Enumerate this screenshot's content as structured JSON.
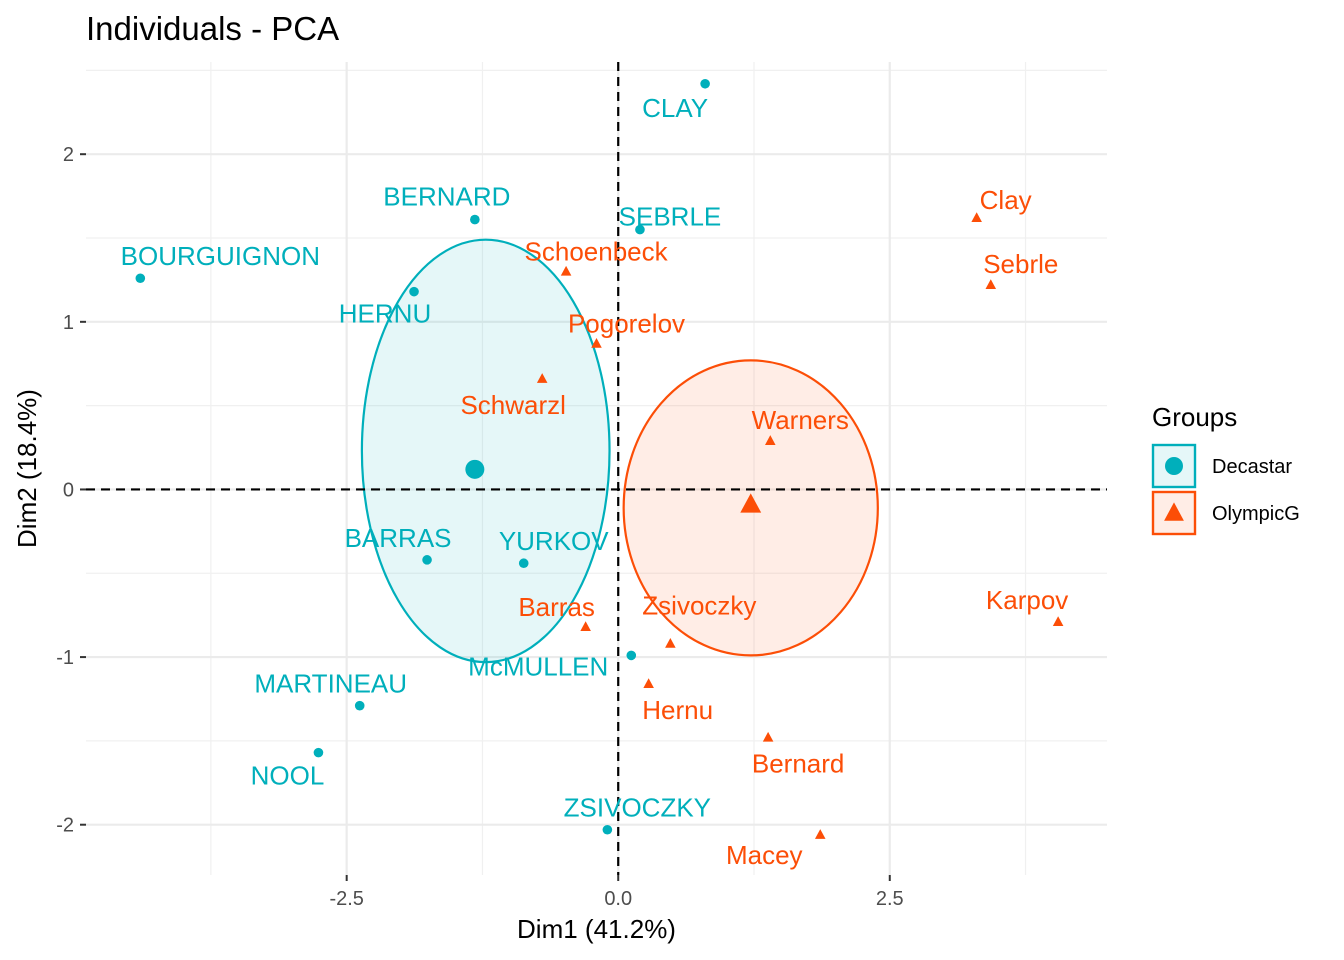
{
  "chart_data": {
    "type": "scatter",
    "title": "Individuals - PCA",
    "xlabel": "Dim1 (41.2%)",
    "ylabel": "Dim2 (18.4%)",
    "xlim": [
      -4.9,
      4.5
    ],
    "ylim": [
      -2.3,
      2.55
    ],
    "x_ticks": [
      -2.5,
      0.0,
      2.5
    ],
    "x_tick_labels": [
      "-2.5",
      "0.0",
      "2.5"
    ],
    "y_ticks": [
      -2,
      -1,
      0,
      1,
      2
    ],
    "y_tick_labels": [
      "-2",
      "-1",
      "0",
      "1",
      "2"
    ],
    "grid": true,
    "reference_lines": {
      "x": 0,
      "y": 0
    },
    "legend": {
      "title": "Groups",
      "position": "right",
      "items": [
        {
          "label": "Decastar",
          "color": "#00AFBB",
          "shape": "circle"
        },
        {
          "label": "OlympicG",
          "color": "#FC4E07",
          "shape": "triangle"
        }
      ]
    },
    "series": [
      {
        "name": "Decastar",
        "color": "#00AFBB",
        "shape": "circle",
        "points": [
          {
            "label": "CLAY",
            "x": 0.8,
            "y": 2.42
          },
          {
            "label": "BERNARD",
            "x": -1.32,
            "y": 1.61
          },
          {
            "label": "SEBRLE",
            "x": 0.2,
            "y": 1.55
          },
          {
            "label": "BOURGUIGNON",
            "x": -4.4,
            "y": 1.26
          },
          {
            "label": "HERNU",
            "x": -1.88,
            "y": 1.18
          },
          {
            "label": "BARRAS",
            "x": -1.76,
            "y": -0.42
          },
          {
            "label": "YURKOV",
            "x": -0.87,
            "y": -0.44
          },
          {
            "label": "McMULLEN",
            "x": 0.12,
            "y": -0.99
          },
          {
            "label": "MARTINEAU",
            "x": -2.38,
            "y": -1.29
          },
          {
            "label": "NOOL",
            "x": -2.76,
            "y": -1.57
          },
          {
            "label": "ZSIVOCZKY",
            "x": -0.1,
            "y": -2.03
          }
        ],
        "mean": {
          "x": -1.32,
          "y": 0.12
        }
      },
      {
        "name": "OlympicG",
        "color": "#FC4E07",
        "shape": "triangle",
        "points": [
          {
            "label": "Clay",
            "x": 3.3,
            "y": 1.62
          },
          {
            "label": "Sebrle",
            "x": 3.43,
            "y": 1.22
          },
          {
            "label": "Schoenbeck",
            "x": -0.48,
            "y": 1.3
          },
          {
            "label": "Pogorelov",
            "x": -0.2,
            "y": 0.87
          },
          {
            "label": "Schwarzl",
            "x": -0.7,
            "y": 0.66
          },
          {
            "label": "Warners",
            "x": 1.4,
            "y": 0.29
          },
          {
            "label": "Karpov",
            "x": 4.05,
            "y": -0.79
          },
          {
            "label": "Barras",
            "x": -0.3,
            "y": -0.82
          },
          {
            "label": "Zsivoczky",
            "x": 0.48,
            "y": -0.92
          },
          {
            "label": "Hernu",
            "x": 0.28,
            "y": -1.16
          },
          {
            "label": "Bernard",
            "x": 1.38,
            "y": -1.48
          },
          {
            "label": "Macey",
            "x": 1.86,
            "y": -2.06
          }
        ],
        "mean": {
          "x": 1.22,
          "y": -0.09
        }
      }
    ],
    "ellipses": [
      {
        "group": "Decastar",
        "center": {
          "x": -1.22,
          "y": 0.23
        },
        "rx": 1.14,
        "ry": 1.26,
        "fill_opacity": 0.1
      },
      {
        "group": "OlympicG",
        "center": {
          "x": 1.22,
          "y": -0.11
        },
        "rx": 1.17,
        "ry": 0.88,
        "fill_opacity": 0.1
      }
    ]
  }
}
